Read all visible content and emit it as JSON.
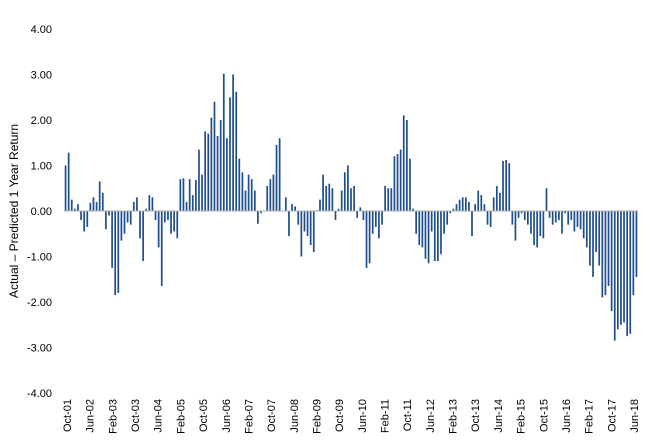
{
  "chart_data": {
    "type": "bar",
    "title": "",
    "xlabel": "",
    "ylabel": "Actual – Predicted 1 Year Return",
    "ylim": [
      -4,
      4
    ],
    "yticks": [
      "4.00",
      "3.00",
      "2.00",
      "1.00",
      "0.00",
      "-1.00",
      "-2.00",
      "-3.00",
      "-4.00"
    ],
    "xticks": [
      "Oct-01",
      "Jun-02",
      "Feb-03",
      "Oct-03",
      "Jun-04",
      "Feb-05",
      "Oct-05",
      "Jun-06",
      "Feb-07",
      "Oct-07",
      "Jun-08",
      "Feb-09",
      "Oct-09",
      "Jun-10",
      "Feb-11",
      "Oct-11",
      "Jun-12",
      "Feb-13",
      "Oct-13",
      "Jun-14",
      "Feb-15",
      "Oct-15",
      "Jun-16",
      "Feb-17",
      "Oct-17",
      "Jun-18"
    ],
    "x_start": "Oct-01",
    "x_end": "Jun-18",
    "grid": false,
    "legend": "none",
    "series": [
      {
        "color": "#1f4e8c",
        "values": [
          1.0,
          1.28,
          0.25,
          0.05,
          0.15,
          -0.2,
          -0.45,
          -0.35,
          0.18,
          0.3,
          0.2,
          0.65,
          0.4,
          -0.4,
          -0.1,
          -1.25,
          -1.85,
          -1.8,
          -0.65,
          -0.5,
          -0.25,
          -0.3,
          0.2,
          0.3,
          -0.6,
          -1.1,
          0.05,
          0.35,
          0.3,
          -0.2,
          -0.8,
          -1.65,
          -0.25,
          -0.2,
          -0.5,
          -0.45,
          -0.6,
          0.7,
          0.72,
          0.2,
          0.7,
          0.35,
          0.68,
          1.35,
          0.8,
          1.75,
          1.7,
          2.05,
          2.4,
          1.65,
          2.0,
          3.02,
          1.6,
          2.5,
          3.0,
          2.62,
          1.15,
          0.85,
          0.45,
          0.8,
          0.7,
          0.45,
          -0.28,
          -0.05,
          0.0,
          0.55,
          0.7,
          0.8,
          1.45,
          1.6,
          0.0,
          0.3,
          -0.55,
          0.15,
          0.1,
          -0.3,
          -1.0,
          -0.45,
          -0.55,
          -0.75,
          -0.9,
          0.02,
          0.25,
          0.8,
          0.55,
          0.6,
          0.5,
          -0.2,
          0.05,
          0.45,
          0.85,
          1.0,
          0.5,
          0.55,
          -0.15,
          0.08,
          -0.2,
          -1.25,
          -1.15,
          -0.5,
          -0.35,
          -0.6,
          -0.3,
          0.55,
          0.5,
          0.5,
          1.2,
          1.25,
          1.35,
          2.1,
          2.0,
          1.15,
          0.05,
          -0.5,
          -0.75,
          -0.8,
          -1.05,
          -1.15,
          -0.45,
          -1.1,
          -1.1,
          -0.95,
          -0.5,
          -0.3,
          -0.05,
          0.05,
          0.15,
          0.25,
          0.3,
          0.3,
          0.2,
          -0.55,
          0.15,
          0.45,
          0.35,
          0.15,
          -0.3,
          -0.35,
          0.3,
          0.55,
          0.4,
          1.1,
          1.12,
          1.05,
          -0.3,
          -0.65,
          -0.15,
          -0.05,
          -0.2,
          -0.3,
          -0.5,
          -0.75,
          -0.8,
          -0.55,
          -0.6,
          0.5,
          -0.15,
          -0.3,
          -0.25,
          -0.2,
          -0.5,
          -0.05,
          -0.3,
          -0.2,
          -0.45,
          -0.35,
          -0.4,
          -0.6,
          -0.8,
          -1.2,
          -1.45,
          -0.9,
          -1.2,
          -1.9,
          -1.85,
          -1.65,
          -2.2,
          -2.85,
          -2.6,
          -2.5,
          -2.45,
          -2.75,
          -2.7,
          -1.85,
          -1.45
        ]
      }
    ]
  }
}
